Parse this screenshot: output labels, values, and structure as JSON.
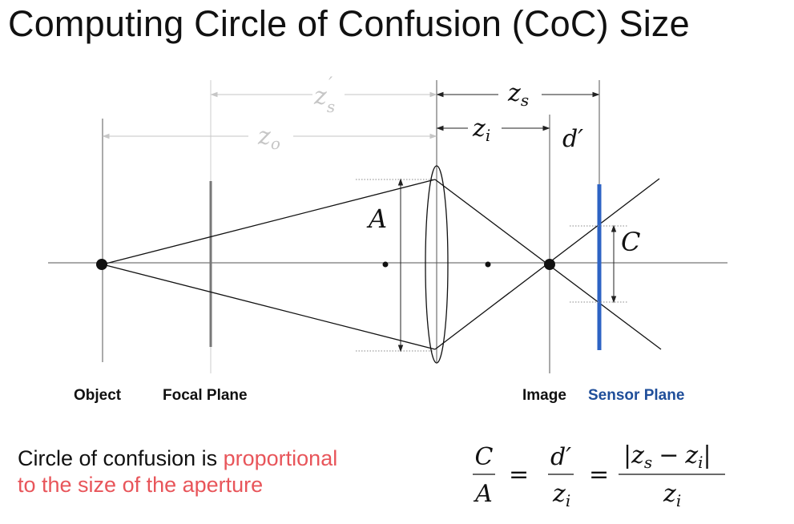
{
  "title": "Computing Circle of Confusion (CoC) Size",
  "diagram": {
    "dims": {
      "zs_prime": "z",
      "zs_prime_sub": "s",
      "zs_prime_mark": "′",
      "zo": "z",
      "zo_sub": "o",
      "zs": "z",
      "zs_sub": "s",
      "zi": "z",
      "zi_sub": "i",
      "d_prime": "d′",
      "aperture": "A",
      "coc": "C"
    },
    "labels": {
      "object": "Object",
      "focal_plane": "Focal Plane",
      "image": "Image",
      "sensor_plane": "Sensor Plane"
    },
    "colors": {
      "sensor": "#2d63c4",
      "sensor_label": "#1f4e9a",
      "focal_plane": "#777777",
      "gray_dim": "#bbbbbb",
      "highlight": "#e8555a"
    }
  },
  "caption": {
    "text_plain": "Circle of confusion is ",
    "text_highlight_1": "proportional",
    "text_highlight_2": "to the size of the aperture"
  },
  "formula": {
    "frac1_num": "C",
    "frac1_den": "A",
    "eq": "=",
    "frac2_num": "d′",
    "frac2_den_base": "z",
    "frac2_den_sub": "i",
    "frac3_num_open": "|",
    "frac3_num_a": "z",
    "frac3_num_a_sub": "s",
    "frac3_num_minus": "−",
    "frac3_num_b": "z",
    "frac3_num_b_sub": "i",
    "frac3_num_close": "|",
    "frac3_den_base": "z",
    "frac3_den_sub": "i"
  }
}
